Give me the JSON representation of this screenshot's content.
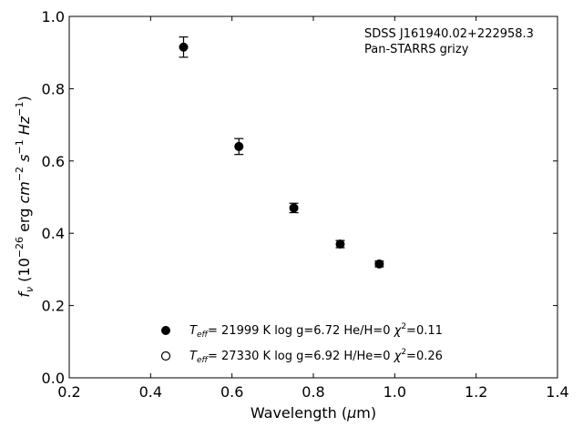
{
  "chart_data": {
    "type": "scatter",
    "xlabel": "Wavelength (μm)",
    "ylabel": "f_ν (10^−26 erg cm^−2 s^−1 Hz^−1)",
    "xlim": [
      0.2,
      1.4
    ],
    "ylim": [
      0.0,
      1.0
    ],
    "xticks": [
      "0.2",
      "0.4",
      "0.6",
      "0.8",
      "1.0",
      "1.2",
      "1.4"
    ],
    "yticks": [
      "0.0",
      "0.2",
      "0.4",
      "0.6",
      "0.8",
      "1.0"
    ],
    "grid": false,
    "annotation": {
      "object": "SDSS J161940.02+222958.3",
      "survey": "Pan-STARRS grizy"
    },
    "series": [
      {
        "marker": "filled-circle",
        "x": [
          0.481,
          0.617,
          0.752,
          0.866,
          0.962
        ],
        "y": [
          0.915,
          0.64,
          0.47,
          0.37,
          0.315
        ],
        "yerr": [
          0.028,
          0.022,
          0.013,
          0.01,
          0.008
        ]
      }
    ],
    "legend": {
      "placement": "bottom-center",
      "entries": [
        {
          "marker": "filled-circle",
          "teff": "= 21999 K",
          "logg": "log g=6.72",
          "comp": "He/H=0",
          "chi2": "=0.11"
        },
        {
          "marker": "open-circle",
          "teff": "= 27330 K",
          "logg": "log g=6.92",
          "comp": "H/He=0",
          "chi2": "=0.26"
        }
      ]
    }
  }
}
